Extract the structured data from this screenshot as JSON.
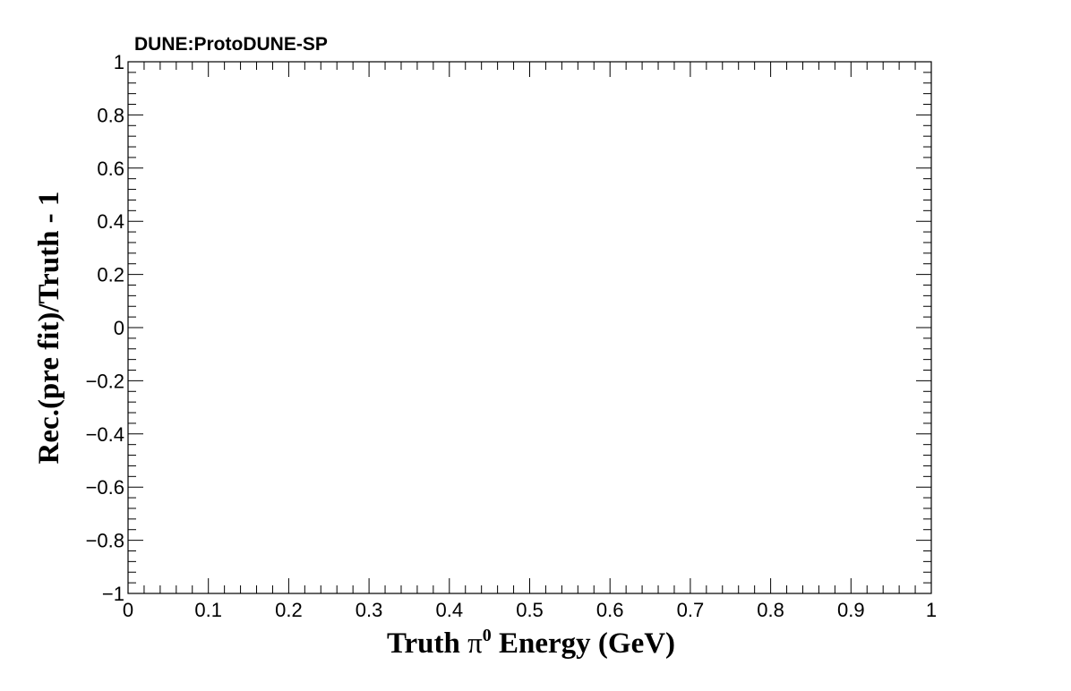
{
  "chart_data": {
    "type": "scatter",
    "title": "",
    "experiment_label": "DUNE:ProtoDUNE-SP",
    "xlabel": {
      "prefix": "Truth  ",
      "symbol": "π",
      "superscript": "0",
      "suffix": " Energy (GeV)"
    },
    "ylabel": "Rec.(pre fit)/Truth - 1",
    "xlim": [
      0,
      1
    ],
    "ylim": [
      -1,
      1
    ],
    "x_ticks": [
      0,
      0.1,
      0.2,
      0.3,
      0.4,
      0.5,
      0.6,
      0.7,
      0.8,
      0.9,
      1
    ],
    "x_tick_labels": [
      "0",
      "0.1",
      "0.2",
      "0.3",
      "0.4",
      "0.5",
      "0.6",
      "0.7",
      "0.8",
      "0.9",
      "1"
    ],
    "y_ticks": [
      1,
      0.8,
      0.6,
      0.4,
      0.2,
      0,
      -0.2,
      -0.4,
      -0.6,
      -0.8,
      -1
    ],
    "y_tick_labels": [
      "1",
      "0.8",
      "0.6",
      "0.4",
      "0.2",
      "0",
      "−0.2",
      "−0.4",
      "−0.6",
      "−0.8",
      "−1"
    ],
    "x_minor_per_major": 5,
    "y_minor_per_major": 5,
    "grid": false,
    "series": []
  }
}
